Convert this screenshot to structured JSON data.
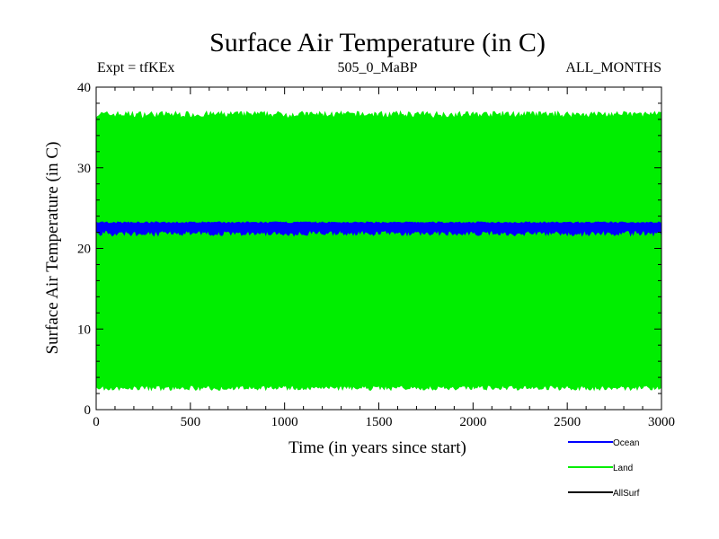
{
  "chart_data": {
    "type": "line",
    "title": "Surface Air Temperature (in C)",
    "subtitle_left": "Expt = tfKEx",
    "subtitle_center": "505_0_MaBP",
    "subtitle_right": "ALL_MONTHS",
    "xlabel": "Time (in years since start)",
    "ylabel": "Surface Air Temperature (in C)",
    "xlim": [
      0,
      3000
    ],
    "ylim": [
      0,
      40
    ],
    "xticks": [
      0,
      500,
      1000,
      1500,
      2000,
      2500,
      3000
    ],
    "yticks": [
      0,
      10,
      20,
      30,
      40
    ],
    "grid": false,
    "legend_position": "bottom-right",
    "series": [
      {
        "name": "Land",
        "color": "#00ee00",
        "mean": 20,
        "min": 3,
        "max": 37,
        "band_low": 3,
        "band_high": 36.6
      },
      {
        "name": "Ocean",
        "color": "#0000ff",
        "mean": 22.7,
        "min": 22.1,
        "max": 23.3,
        "band_low": 22.2,
        "band_high": 23.2
      },
      {
        "name": "AllSurf",
        "color": "#000000",
        "values": []
      }
    ],
    "legend": [
      {
        "name": "Ocean",
        "color": "#0000ff"
      },
      {
        "name": "Land",
        "color": "#00ee00"
      },
      {
        "name": "AllSurf",
        "color": "#000000"
      }
    ]
  }
}
